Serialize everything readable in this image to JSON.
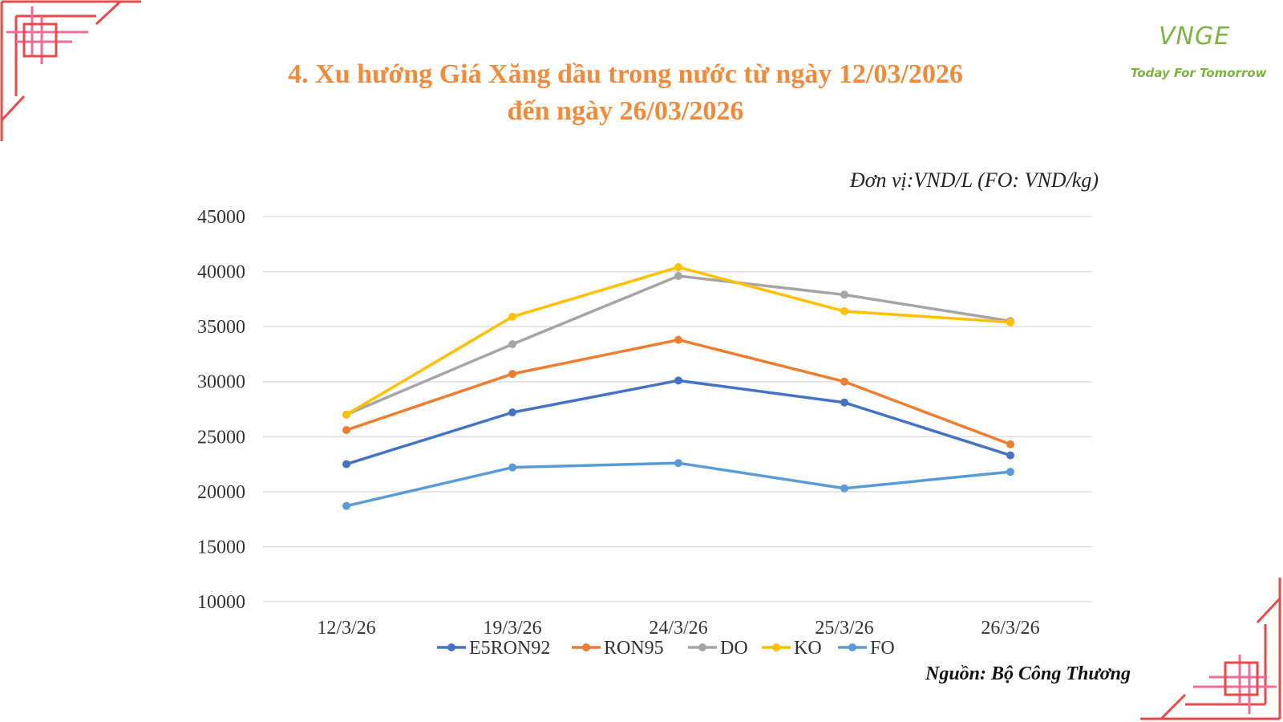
{
  "page": {
    "title_line1": "4. Xu hướng Giá Xăng dầu trong nước từ ngày 12/03/2026",
    "title_line2": "đến ngày 26/03/2026",
    "unit_note": "Đơn vị:VND/L (FO: VND/kg)",
    "source_note": "Nguồn: Bộ Công Thương",
    "logo_mark": "VNGE",
    "logo_tagline": "Today For Tomorrow"
  },
  "colors": {
    "title": "#F08A3C",
    "logo": "#7CB342",
    "deco_red": "#E84A4A",
    "deco_pink": "#F06C9B"
  },
  "chart_data": {
    "type": "line",
    "title": "",
    "xlabel": "",
    "ylabel": "",
    "categories": [
      "12/3/26",
      "19/3/26",
      "24/3/26",
      "25/3/26",
      "26/3/26"
    ],
    "ylim": [
      10000,
      45000
    ],
    "yticks": [
      10000,
      15000,
      20000,
      25000,
      30000,
      35000,
      40000,
      45000
    ],
    "grid": true,
    "legend_position": "bottom",
    "series": [
      {
        "name": "E5RON92",
        "color": "#4472C4",
        "values": [
          22500,
          27200,
          30100,
          28100,
          23300
        ]
      },
      {
        "name": "RON95",
        "color": "#ED7D31",
        "values": [
          25600,
          30700,
          33800,
          30000,
          24300
        ]
      },
      {
        "name": "DO",
        "color": "#A5A5A5",
        "values": [
          27000,
          33400,
          39600,
          37900,
          35500
        ]
      },
      {
        "name": "KO",
        "color": "#FFC000",
        "values": [
          27000,
          35900,
          40400,
          36400,
          35400
        ]
      },
      {
        "name": "FO",
        "color": "#5B9BD5",
        "values": [
          18700,
          22200,
          22600,
          20300,
          21800
        ]
      }
    ]
  }
}
